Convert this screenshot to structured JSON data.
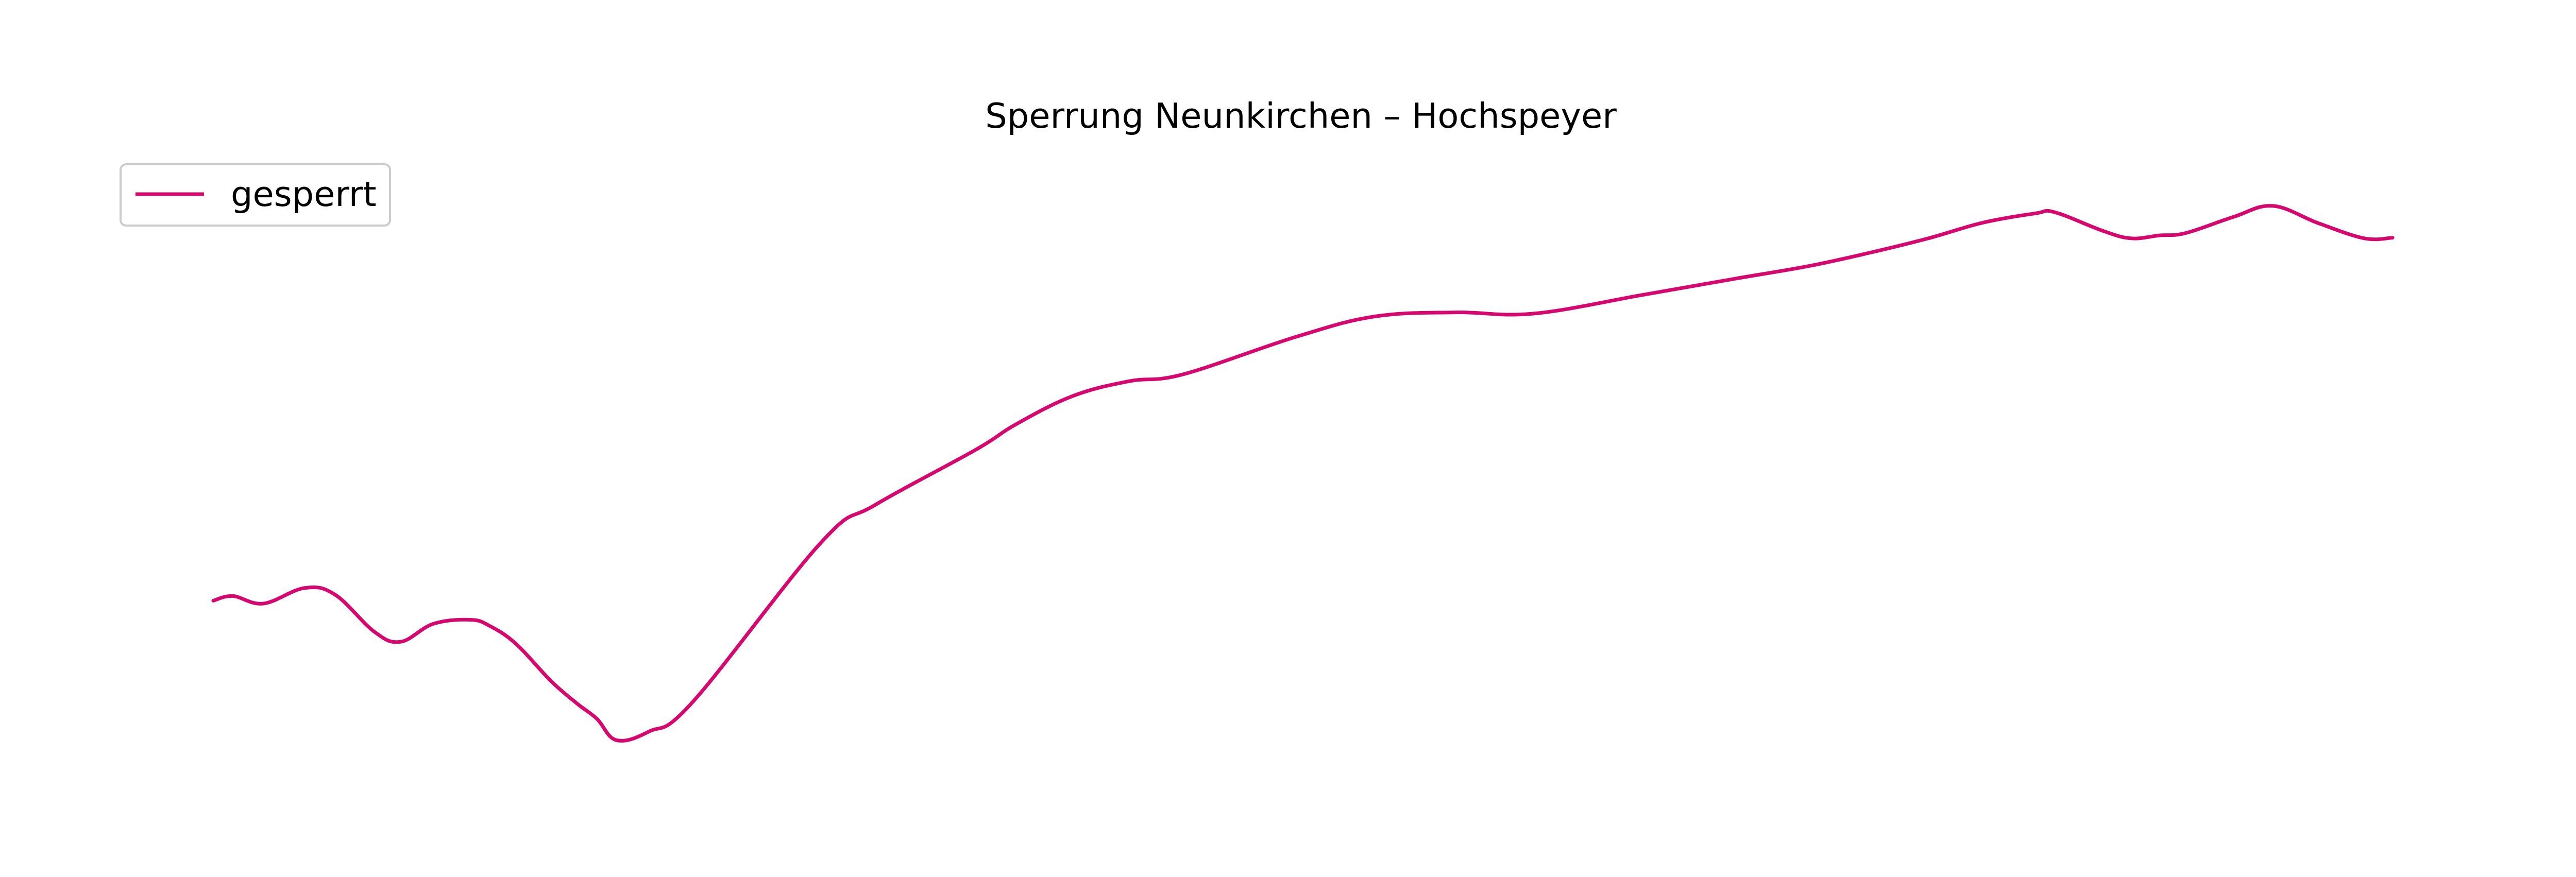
{
  "title": "Sperrung Neunkirchen – Hochspeyer",
  "legend": {
    "label": "gesperrt",
    "placement": "upper-left"
  },
  "route": {
    "color": "#d6086f",
    "description_points": [
      [
        0.0,
        0.737
      ],
      [
        0.009,
        0.729
      ],
      [
        0.023,
        0.742
      ],
      [
        0.042,
        0.715
      ],
      [
        0.056,
        0.727
      ],
      [
        0.074,
        0.791
      ],
      [
        0.086,
        0.808
      ],
      [
        0.101,
        0.777
      ],
      [
        0.118,
        0.77
      ],
      [
        0.127,
        0.781
      ],
      [
        0.139,
        0.812
      ],
      [
        0.155,
        0.876
      ],
      [
        0.167,
        0.915
      ],
      [
        0.176,
        0.941
      ],
      [
        0.185,
        0.978
      ],
      [
        0.2,
        0.963
      ],
      [
        0.22,
        0.912
      ],
      [
        0.279,
        0.636
      ],
      [
        0.304,
        0.571
      ],
      [
        0.35,
        0.476
      ],
      [
        0.368,
        0.433
      ],
      [
        0.394,
        0.384
      ],
      [
        0.42,
        0.358
      ],
      [
        0.445,
        0.346
      ],
      [
        0.497,
        0.281
      ],
      [
        0.533,
        0.246
      ],
      [
        0.57,
        0.239
      ],
      [
        0.606,
        0.241
      ],
      [
        0.657,
        0.208
      ],
      [
        0.698,
        0.181
      ],
      [
        0.732,
        0.159
      ],
      [
        0.76,
        0.136
      ],
      [
        0.787,
        0.111
      ],
      [
        0.812,
        0.084
      ],
      [
        0.836,
        0.068
      ],
      [
        0.845,
        0.066
      ],
      [
        0.867,
        0.098
      ],
      [
        0.88,
        0.111
      ],
      [
        0.893,
        0.106
      ],
      [
        0.905,
        0.102
      ],
      [
        0.927,
        0.074
      ],
      [
        0.945,
        0.055
      ],
      [
        0.966,
        0.085
      ],
      [
        0.987,
        0.111
      ],
      [
        1.0,
        0.11
      ]
    ]
  }
}
